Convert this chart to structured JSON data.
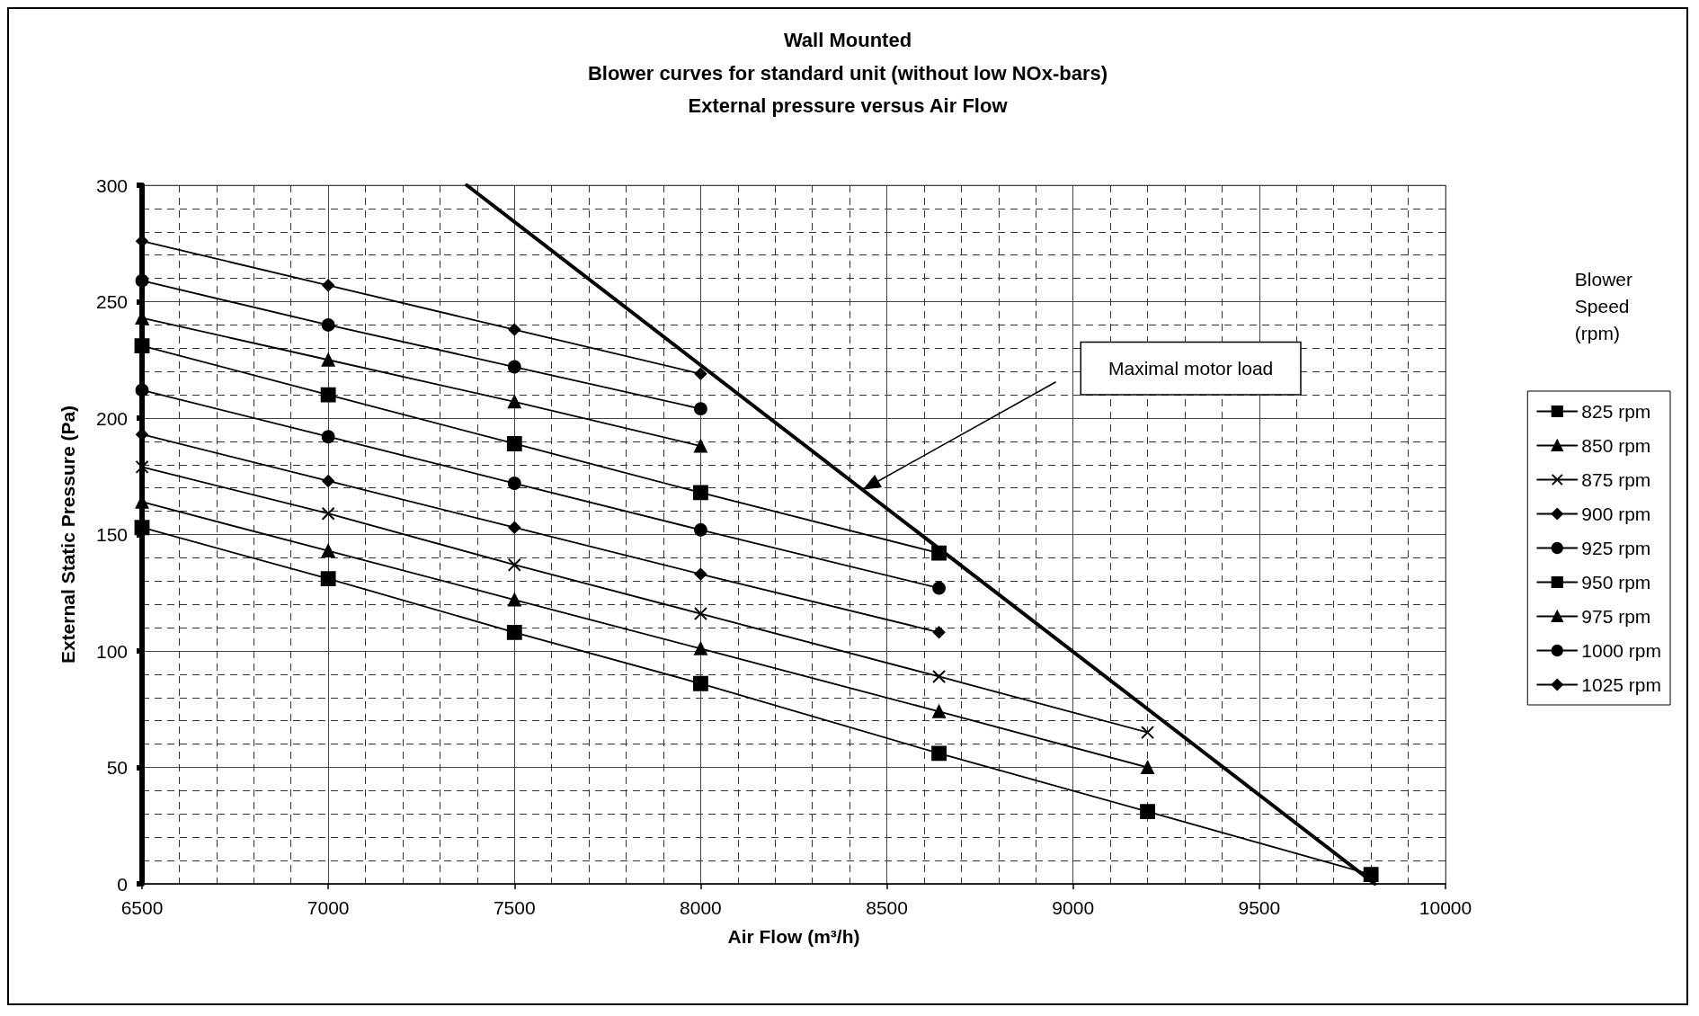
{
  "chart_data": {
    "type": "line",
    "title": "Wall Mounted",
    "subtitle": "Blower curves for standard unit (without low NOx-bars)\nExternal pressure versus Air Flow",
    "xlabel": "Air Flow (m³/h)",
    "ylabel": "External Static Pressure (Pa)",
    "legend_title": "Blower\nSpeed\n(rpm)",
    "series": [
      {
        "name": "825 rpm",
        "color": "#000000",
        "marker": "square",
        "x": [
          6500,
          7000,
          7500,
          8000,
          8640,
          9200,
          9800
        ],
        "values": [
          153,
          131,
          108,
          86,
          56,
          31,
          4
        ]
      },
      {
        "name": "850 rpm",
        "color": "#000000",
        "marker": "triangle",
        "x": [
          6500,
          7000,
          7500,
          8000,
          8640,
          9200
        ],
        "values": [
          164,
          143,
          122,
          101,
          74,
          50
        ]
      },
      {
        "name": "875 rpm",
        "color": "#000000",
        "marker": "cross",
        "x": [
          6500,
          7000,
          7500,
          8000,
          8640,
          9200
        ],
        "values": [
          179,
          159,
          137,
          116,
          89,
          65
        ]
      },
      {
        "name": "900 rpm",
        "color": "#000000",
        "marker": "diamond",
        "x": [
          6500,
          7000,
          7500,
          8000,
          8640
        ],
        "values": [
          193,
          173,
          153,
          133,
          108
        ]
      },
      {
        "name": "925 rpm",
        "color": "#000000",
        "marker": "circle",
        "x": [
          6500,
          7000,
          7500,
          8000,
          8640
        ],
        "values": [
          212,
          192,
          172,
          152,
          127
        ]
      },
      {
        "name": "950 rpm",
        "color": "#000000",
        "marker": "square",
        "x": [
          6500,
          7000,
          7500,
          8000,
          8640
        ],
        "values": [
          231,
          210,
          189,
          168,
          142
        ]
      },
      {
        "name": "975 rpm",
        "color": "#000000",
        "marker": "triangle",
        "x": [
          6500,
          7000,
          7500,
          8000
        ],
        "values": [
          243,
          225,
          207,
          188
        ]
      },
      {
        "name": "1000 rpm",
        "color": "#000000",
        "marker": "circle",
        "x": [
          6500,
          7000,
          7500,
          8000
        ],
        "values": [
          259,
          240,
          222,
          204
        ]
      },
      {
        "name": "1025 rpm",
        "color": "#000000",
        "marker": "diamond",
        "x": [
          6500,
          7000,
          7500,
          8000
        ],
        "values": [
          276,
          257,
          238,
          219
        ]
      },
      {
        "color": "#000000",
        "marker": "none",
        "x": [
          7372,
          9810
        ],
        "values": [
          300,
          0
        ]
      }
    ],
    "annotations": [
      "Maximal motor load"
    ],
    "xlim": [
      6500,
      10000
    ],
    "xticks": [
      6500,
      7000,
      7500,
      8000,
      8500,
      9000,
      9500,
      10000
    ],
    "ylim": [
      0,
      300
    ],
    "yticks": [
      0,
      50,
      100,
      150,
      200,
      250,
      300
    ],
    "grid": true,
    "legend": "right"
  }
}
